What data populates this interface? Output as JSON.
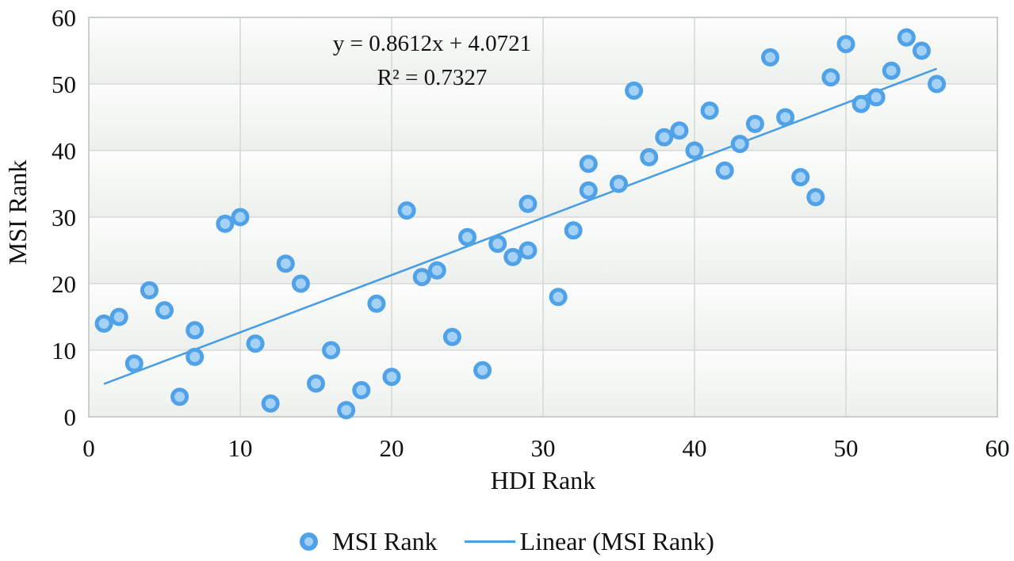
{
  "figure": {
    "equation_line1": "y = 0.8612x + 4.0721",
    "equation_line2": "R² = 0.7327",
    "x_axis_title": "HDI Rank",
    "y_axis_title": "MSI Rank"
  },
  "legend": {
    "series_label": "MSI Rank",
    "trend_label": "Linear (MSI Rank)"
  },
  "chart_data": {
    "type": "scatter",
    "title": "",
    "xlabel": "HDI Rank",
    "ylabel": "MSI Rank",
    "xlim": [
      0,
      60
    ],
    "ylim": [
      0,
      60
    ],
    "x_ticks": [
      0,
      10,
      20,
      30,
      40,
      50,
      60
    ],
    "y_ticks": [
      0,
      10,
      20,
      30,
      40,
      50,
      60
    ],
    "grid": true,
    "legend_position": "bottom",
    "series": [
      {
        "name": "MSI Rank",
        "points": [
          [
            1,
            14
          ],
          [
            2,
            15
          ],
          [
            3,
            8
          ],
          [
            4,
            19
          ],
          [
            5,
            16
          ],
          [
            6,
            3
          ],
          [
            7,
            9
          ],
          [
            7,
            13
          ],
          [
            9,
            29
          ],
          [
            10,
            30
          ],
          [
            11,
            11
          ],
          [
            12,
            2
          ],
          [
            13,
            23
          ],
          [
            14,
            20
          ],
          [
            15,
            5
          ],
          [
            16,
            10
          ],
          [
            17,
            1
          ],
          [
            18,
            4
          ],
          [
            19,
            17
          ],
          [
            20,
            6
          ],
          [
            21,
            31
          ],
          [
            22,
            21
          ],
          [
            23,
            22
          ],
          [
            24,
            12
          ],
          [
            25,
            27
          ],
          [
            26,
            7
          ],
          [
            27,
            26
          ],
          [
            28,
            24
          ],
          [
            29,
            25
          ],
          [
            29,
            32
          ],
          [
            31,
            18
          ],
          [
            32,
            28
          ],
          [
            33,
            34
          ],
          [
            33,
            38
          ],
          [
            35,
            35
          ],
          [
            36,
            49
          ],
          [
            37,
            39
          ],
          [
            38,
            42
          ],
          [
            39,
            43
          ],
          [
            40,
            40
          ],
          [
            41,
            46
          ],
          [
            42,
            37
          ],
          [
            43,
            41
          ],
          [
            44,
            44
          ],
          [
            45,
            54
          ],
          [
            46,
            45
          ],
          [
            47,
            36
          ],
          [
            48,
            33
          ],
          [
            49,
            51
          ],
          [
            50,
            56
          ],
          [
            51,
            47
          ],
          [
            52,
            48
          ],
          [
            53,
            52
          ],
          [
            54,
            57
          ],
          [
            55,
            55
          ],
          [
            56,
            50
          ]
        ]
      }
    ],
    "trendline": {
      "name": "Linear (MSI Rank)",
      "slope": 0.8612,
      "intercept": 4.0721,
      "x_start": 1,
      "x_end": 56,
      "equation": "y = 0.8612x + 4.0721",
      "r_squared": "R² = 0.7327"
    },
    "colors": {
      "marker_fill": "#A5D1F4",
      "marker_stroke": "#4FA2E8",
      "trendline": "#4A9EE4",
      "gridline": "#D5DAD5",
      "plot_border": "#C9CFC9",
      "band_top": "#FCFDFC",
      "band_bottom": "#ECF0EC",
      "text": "#111111"
    }
  }
}
